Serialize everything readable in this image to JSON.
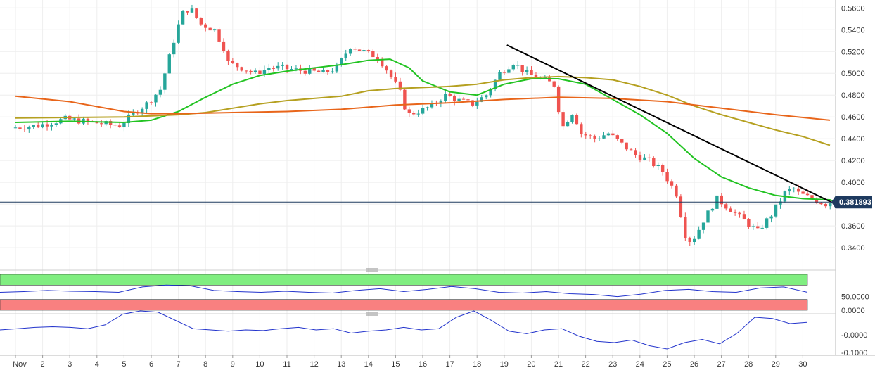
{
  "chart_data": [
    {
      "type": "candlestick",
      "ylim": [
        0.322,
        0.566
      ],
      "y_ticks": [
        "0.5600",
        "0.5400",
        "0.5200",
        "0.5000",
        "0.4800",
        "0.4600",
        "0.4400",
        "0.4200",
        "0.4000",
        "0.3800",
        "0.3600",
        "0.3400"
      ],
      "x_ticks": [
        "Nov",
        "2",
        "3",
        "4",
        "5",
        "6",
        "7",
        "8",
        "9",
        "10",
        "11",
        "12",
        "13",
        "14",
        "15",
        "16",
        "17",
        "18",
        "19",
        "20",
        "21",
        "22",
        "23",
        "24",
        "25",
        "26",
        "27",
        "28",
        "29",
        "30"
      ],
      "last_price": "0.381893",
      "grid": true,
      "colors": {
        "up": "#26a69a",
        "down": "#ef5350",
        "ma_fast": "#22c322",
        "ma_mid": "#b5a020",
        "ma_slow": "#e8651a",
        "trendline": "#000000",
        "last_price_line": "#1e3a5f"
      },
      "key_points": [
        [
          0,
          0.45
        ],
        [
          1,
          0.452
        ],
        [
          2,
          0.458
        ],
        [
          3,
          0.455
        ],
        [
          4,
          0.452
        ],
        [
          4.5,
          0.463
        ],
        [
          5,
          0.472
        ],
        [
          5.5,
          0.485
        ],
        [
          6,
          0.53
        ],
        [
          6.3,
          0.555
        ],
        [
          6.6,
          0.56
        ],
        [
          7,
          0.545
        ],
        [
          7.5,
          0.54
        ],
        [
          7.9,
          0.52
        ],
        [
          8,
          0.51
        ],
        [
          8.5,
          0.505
        ],
        [
          9,
          0.5
        ],
        [
          9.5,
          0.505
        ],
        [
          10,
          0.505
        ],
        [
          10.5,
          0.503
        ],
        [
          11,
          0.502
        ],
        [
          11.5,
          0.5
        ],
        [
          12,
          0.505
        ],
        [
          12.5,
          0.525
        ],
        [
          13,
          0.52
        ],
        [
          13.5,
          0.515
        ],
        [
          13.8,
          0.505
        ],
        [
          14.3,
          0.485
        ],
        [
          14.6,
          0.462
        ],
        [
          15,
          0.465
        ],
        [
          15.5,
          0.47
        ],
        [
          16,
          0.48
        ],
        [
          16.5,
          0.475
        ],
        [
          17,
          0.472
        ],
        [
          17.5,
          0.48
        ],
        [
          18,
          0.5
        ],
        [
          18.5,
          0.51
        ],
        [
          19,
          0.5
        ],
        [
          19.5,
          0.495
        ],
        [
          20,
          0.49
        ],
        [
          20.3,
          0.45
        ],
        [
          20.7,
          0.465
        ],
        [
          21,
          0.445
        ],
        [
          21.5,
          0.44
        ],
        [
          22,
          0.445
        ],
        [
          22.5,
          0.435
        ],
        [
          23,
          0.425
        ],
        [
          23.5,
          0.42
        ],
        [
          24,
          0.41
        ],
        [
          24.5,
          0.39
        ],
        [
          24.9,
          0.345
        ],
        [
          25.2,
          0.35
        ],
        [
          25.5,
          0.365
        ],
        [
          26,
          0.385
        ],
        [
          26.5,
          0.375
        ],
        [
          27,
          0.365
        ],
        [
          27.5,
          0.355
        ],
        [
          28,
          0.37
        ],
        [
          28.5,
          0.39
        ],
        [
          28.8,
          0.395
        ],
        [
          29,
          0.39
        ],
        [
          29.5,
          0.385
        ],
        [
          30,
          0.38
        ],
        [
          30.2,
          0.382
        ]
      ],
      "series": [
        {
          "name": "",
          "type": "moving-average",
          "color": "#22c322",
          "points": [
            [
              0,
              0.455
            ],
            [
              2,
              0.456
            ],
            [
              4,
              0.455
            ],
            [
              5,
              0.457
            ],
            [
              6,
              0.465
            ],
            [
              7,
              0.478
            ],
            [
              8,
              0.49
            ],
            [
              9,
              0.498
            ],
            [
              10,
              0.502
            ],
            [
              11,
              0.505
            ],
            [
              12,
              0.508
            ],
            [
              13,
              0.512
            ],
            [
              13.8,
              0.513
            ],
            [
              14.5,
              0.505
            ],
            [
              15,
              0.493
            ],
            [
              16,
              0.483
            ],
            [
              17,
              0.48
            ],
            [
              18,
              0.49
            ],
            [
              19,
              0.495
            ],
            [
              20,
              0.495
            ],
            [
              21,
              0.49
            ],
            [
              22,
              0.476
            ],
            [
              23,
              0.462
            ],
            [
              24,
              0.445
            ],
            [
              25,
              0.422
            ],
            [
              26,
              0.405
            ],
            [
              27,
              0.395
            ],
            [
              28,
              0.388
            ],
            [
              29,
              0.385
            ],
            [
              30,
              0.384
            ],
            [
              30.2,
              0.382
            ]
          ]
        },
        {
          "name": "",
          "type": "moving-average",
          "color": "#b5a020",
          "points": [
            [
              0,
              0.459
            ],
            [
              4,
              0.46
            ],
            [
              5,
              0.461
            ],
            [
              6,
              0.462
            ],
            [
              7,
              0.464
            ],
            [
              8,
              0.468
            ],
            [
              9,
              0.472
            ],
            [
              10,
              0.475
            ],
            [
              11,
              0.477
            ],
            [
              12,
              0.479
            ],
            [
              13,
              0.484
            ],
            [
              14,
              0.486
            ],
            [
              15,
              0.487
            ],
            [
              16,
              0.488
            ],
            [
              17,
              0.49
            ],
            [
              18,
              0.494
            ],
            [
              19,
              0.496
            ],
            [
              20,
              0.497
            ],
            [
              21,
              0.496
            ],
            [
              22,
              0.494
            ],
            [
              23,
              0.488
            ],
            [
              24,
              0.48
            ],
            [
              25,
              0.47
            ],
            [
              26,
              0.462
            ],
            [
              27,
              0.455
            ],
            [
              28,
              0.448
            ],
            [
              29,
              0.442
            ],
            [
              30,
              0.434
            ]
          ]
        },
        {
          "name": "",
          "type": "moving-average",
          "color": "#e8651a",
          "points": [
            [
              0,
              0.479
            ],
            [
              2,
              0.474
            ],
            [
              4,
              0.465
            ],
            [
              5,
              0.463
            ],
            [
              6,
              0.463
            ],
            [
              8,
              0.464
            ],
            [
              10,
              0.465
            ],
            [
              12,
              0.467
            ],
            [
              14,
              0.471
            ],
            [
              16,
              0.473
            ],
            [
              18,
              0.476
            ],
            [
              20,
              0.478
            ],
            [
              22,
              0.477
            ],
            [
              24,
              0.474
            ],
            [
              26,
              0.468
            ],
            [
              28,
              0.462
            ],
            [
              30,
              0.457
            ]
          ]
        },
        {
          "name": "",
          "type": "trendline",
          "color": "#000000",
          "points": [
            [
              18.1,
              0.526
            ],
            [
              30.2,
              0.38
            ]
          ]
        }
      ]
    },
    {
      "type": "line",
      "ylim": [
        0,
        100
      ],
      "y_ticks": [
        "50.0000",
        "0.0000"
      ],
      "bands": {
        "upper": [
          70,
          100
        ],
        "lower": [
          0,
          30
        ],
        "upper_color": "#80ee80",
        "lower_color": "#f98080"
      },
      "series": [
        {
          "name": "",
          "color": "#2233cc",
          "values": [
            50,
            52,
            55,
            53,
            52,
            50,
            65,
            70,
            68,
            55,
            52,
            50,
            53,
            50,
            48,
            55,
            60,
            52,
            58,
            66,
            60,
            50,
            48,
            52,
            46,
            44,
            38,
            45,
            55,
            58,
            52,
            50,
            62,
            65,
            50
          ]
        }
      ]
    },
    {
      "type": "line",
      "y_ticks": [
        "-0.0000",
        "-0.1000"
      ],
      "series": [
        {
          "name": "",
          "color": "#2233cc",
          "values": [
            10,
            12,
            14,
            15,
            14,
            12,
            18,
            35,
            40,
            38,
            25,
            12,
            10,
            8,
            10,
            9,
            12,
            14,
            10,
            12,
            5,
            8,
            10,
            14,
            10,
            12,
            30,
            40,
            25,
            8,
            4,
            10,
            12,
            0,
            -8,
            -10,
            -6,
            -15,
            -20,
            -10,
            -5,
            -12,
            5,
            30,
            28,
            20,
            22
          ]
        }
      ]
    }
  ]
}
